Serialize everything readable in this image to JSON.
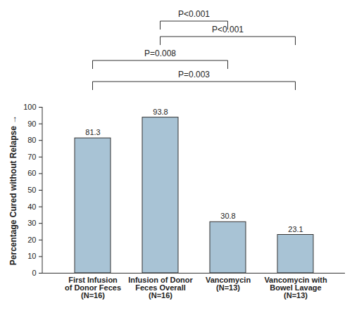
{
  "chart_data": {
    "type": "bar",
    "categories": [
      "First Infusion\nof Donor Feces\n(N=16)",
      "Infusion of Donor\nFeces Overall\n(N=16)",
      "Vancomycin\n(N=13)",
      "Vancomycin with\nBowel Lavage\n(N=13)"
    ],
    "values": [
      81.3,
      93.8,
      30.8,
      23.1
    ],
    "color": "#a8c3d5",
    "ylim": [
      0,
      100
    ],
    "yticks": [
      0,
      10,
      20,
      30,
      40,
      50,
      60,
      70,
      80,
      90,
      100
    ],
    "y_label": "Percentage Cured without Relapse",
    "data_labels": true,
    "grid": false,
    "annotations": [
      {
        "text": "P<0.001",
        "between": [
          "Infusion of Donor\nFeces Overall\n(N=16)",
          "Vancomycin\n(N=13)"
        ]
      },
      {
        "text": "P<0.001",
        "between": [
          "Infusion of Donor\nFeces Overall\n(N=16)",
          "Vancomycin with\nBowel Lavage\n(N=13)"
        ]
      },
      {
        "text": "P=0.008",
        "between": [
          "First Infusion\nof Donor Feces\n(N=16)",
          "Vancomycin\n(N=13)"
        ]
      },
      {
        "text": "P=0.003",
        "between": [
          "First Infusion\nof Donor Feces\n(N=16)",
          "Vancomycin with\nBowel Lavage\n(N=13)"
        ]
      }
    ]
  }
}
